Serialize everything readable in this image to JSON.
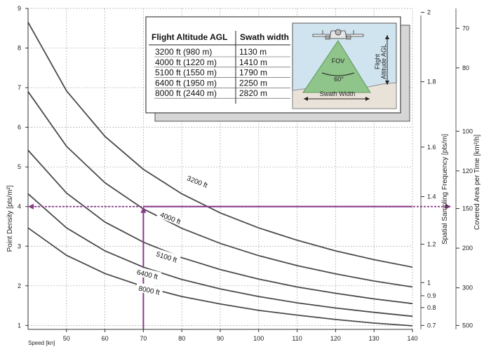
{
  "chart_data": {
    "type": "line",
    "xlabel": "Speed [kn]",
    "ylabel": "Point Density [pts/m²]",
    "y2label": "Spatial Sampling Frequency [pts/m]",
    "y3label": "Covered Area per Time [km²/h]",
    "xlim": [
      40,
      140
    ],
    "ylim": [
      0.9,
      9
    ],
    "x_ticks": [
      "50",
      "60",
      "70",
      "80",
      "90",
      "100",
      "110",
      "120",
      "130",
      "140"
    ],
    "y_ticks": [
      "1",
      "2",
      "3",
      "4",
      "5",
      "6",
      "7",
      "8",
      "9"
    ],
    "y2_ticks": [
      {
        "label": "0.7",
        "density": 1.0
      },
      {
        "label": "0.8",
        "density": 1.45
      },
      {
        "label": "0.9",
        "density": 1.75
      },
      {
        "label": "1",
        "density": 2.08
      },
      {
        "label": "1.2",
        "density": 3.05
      },
      {
        "label": "1.4",
        "density": 4.25
      },
      {
        "label": "1.6",
        "density": 5.5
      },
      {
        "label": "1.8",
        "density": 7.15
      },
      {
        "label": "2",
        "density": 8.9
      }
    ],
    "y3_ticks": [
      {
        "label": "70",
        "density": 8.5
      },
      {
        "label": "80",
        "density": 7.5
      },
      {
        "label": "100",
        "density": 5.9
      },
      {
        "label": "120",
        "density": 4.9
      },
      {
        "label": "150",
        "density": 3.95
      },
      {
        "label": "200",
        "density": 2.95
      },
      {
        "label": "300",
        "density": 1.95
      },
      {
        "label": "500",
        "density": 1.0
      }
    ],
    "series": [
      {
        "name": "3200 ft",
        "x": [
          40,
          50,
          60,
          70,
          80,
          90,
          100,
          110,
          120,
          130,
          140
        ],
        "y": [
          8.65,
          6.92,
          5.77,
          4.94,
          4.32,
          3.84,
          3.46,
          3.15,
          2.88,
          2.66,
          2.47
        ]
      },
      {
        "name": "4000 ft",
        "x": [
          40,
          50,
          60,
          70,
          80,
          90,
          100,
          110,
          120,
          130,
          140
        ],
        "y": [
          6.9,
          5.52,
          4.6,
          3.94,
          3.45,
          3.07,
          2.76,
          2.51,
          2.3,
          2.12,
          1.97
        ]
      },
      {
        "name": "5100 ft",
        "x": [
          40,
          50,
          60,
          70,
          80,
          90,
          100,
          110,
          120,
          130,
          140
        ],
        "y": [
          5.42,
          4.34,
          3.61,
          3.1,
          2.71,
          2.41,
          2.17,
          1.97,
          1.81,
          1.67,
          1.55
        ]
      },
      {
        "name": "6400 ft",
        "x": [
          40,
          50,
          60,
          70,
          80,
          90,
          100,
          110,
          120,
          130,
          140
        ],
        "y": [
          4.32,
          3.46,
          2.88,
          2.47,
          2.16,
          1.92,
          1.73,
          1.57,
          1.44,
          1.33,
          1.23
        ]
      },
      {
        "name": "8000 ft",
        "x": [
          40,
          50,
          60,
          70,
          80,
          90,
          100,
          110,
          120,
          130,
          140
        ],
        "y": [
          3.46,
          2.77,
          2.31,
          1.98,
          1.73,
          1.54,
          1.38,
          1.26,
          1.15,
          1.06,
          0.99
        ]
      }
    ],
    "series_labels": [
      {
        "name": "3200 ft",
        "x": 84,
        "y": 4.62,
        "angle": 22
      },
      {
        "name": "4000 ft",
        "x": 77,
        "y": 3.7,
        "angle": 22
      },
      {
        "name": "5100 ft",
        "x": 76,
        "y": 2.72,
        "angle": 18
      },
      {
        "name": "6400 ft",
        "x": 71,
        "y": 2.28,
        "angle": 14
      },
      {
        "name": "8000 ft",
        "x": 71.5,
        "y": 1.88,
        "angle": 12
      }
    ],
    "example": {
      "speed": 70,
      "density": 4
    },
    "grid": true
  },
  "table": {
    "header_altitude": "Flight Altitude AGL",
    "header_swath": "Swath width",
    "rows": [
      {
        "altitude": "3200 ft (980 m)",
        "swath": "1130 m"
      },
      {
        "altitude": "4000 ft (1220 m)",
        "swath": "1410 m"
      },
      {
        "altitude": "5100 ft (1550 m)",
        "swath": "1790 m"
      },
      {
        "altitude": "6400 ft (1950 m)",
        "swath": "2250 m"
      },
      {
        "altitude": "8000 ft (2440 m)",
        "swath": "2820 m"
      }
    ]
  },
  "diagram": {
    "fov": "FOV",
    "angle": "60°",
    "swath": "Swath Width",
    "altitude_line1": "Flight",
    "altitude_line2": "Altitude AGL"
  },
  "colors": {
    "curve": "#4a4a4a",
    "guide": "#8a3a8a",
    "grid": "#a8a8a8",
    "fov_fill": "#8fc48a",
    "sky": "#cfe4ef"
  }
}
